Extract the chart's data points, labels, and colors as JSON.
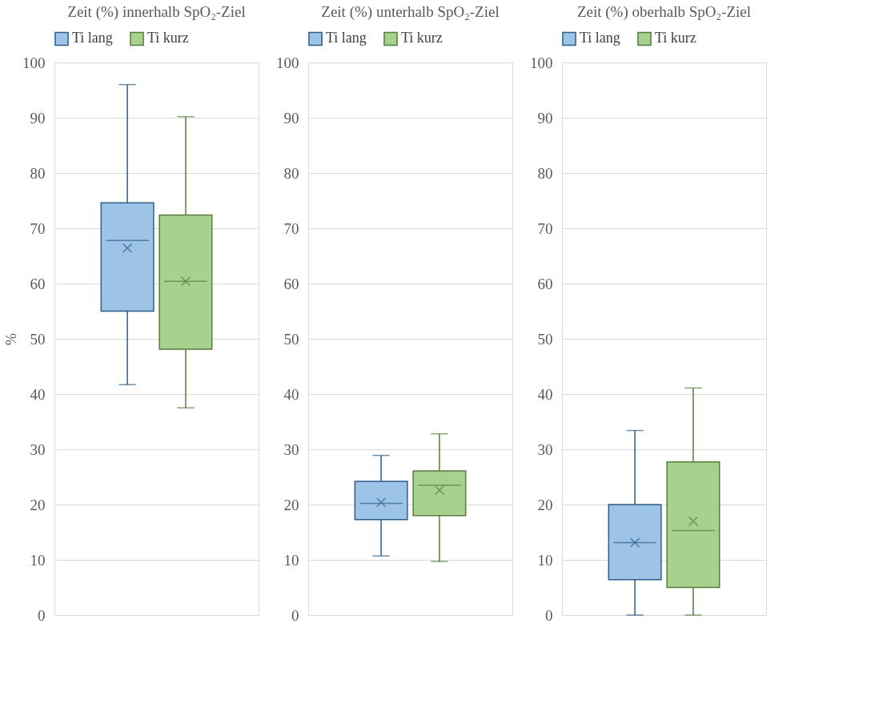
{
  "chart_data": [
    {
      "type": "box",
      "title": "Zeit (%) innerhalb SpO₂-Ziel",
      "ylabel": "%",
      "categories": [
        null
      ],
      "ylim": [
        0,
        100
      ],
      "yticks": [
        0,
        10,
        20,
        30,
        40,
        50,
        60,
        70,
        80,
        90,
        100
      ],
      "grid": "y",
      "legend": "top",
      "series": [
        {
          "name": "Ti lang",
          "color": "#9dc3e6",
          "boxes": [
            {
              "low": 41.7,
              "q1": 55.0,
              "median": 67.8,
              "q3": 74.6,
              "high": 96.0,
              "mean": 66.4
            }
          ]
        },
        {
          "name": "Ti kurz",
          "color": "#a9d18e",
          "boxes": [
            {
              "low": 37.5,
              "q1": 48.1,
              "median": 60.4,
              "q3": 72.4,
              "high": 90.2,
              "mean": 60.4
            }
          ]
        }
      ]
    },
    {
      "type": "box",
      "title": "Zeit (%) unterhalb SpO₂-Ziel",
      "categories": [
        null
      ],
      "ylim": [
        0,
        100
      ],
      "yticks": [
        0,
        10,
        20,
        30,
        40,
        50,
        60,
        70,
        80,
        90,
        100
      ],
      "grid": "y",
      "legend": "top",
      "series": [
        {
          "name": "Ti lang",
          "color": "#9dc3e6",
          "boxes": [
            {
              "low": 10.7,
              "q1": 17.3,
              "median": 20.2,
              "q3": 24.2,
              "high": 28.9,
              "mean": 20.4
            }
          ]
        },
        {
          "name": "Ti kurz",
          "color": "#a9d18e",
          "boxes": [
            {
              "low": 9.7,
              "q1": 18.0,
              "median": 23.5,
              "q3": 26.1,
              "high": 32.8,
              "mean": 22.6
            }
          ]
        }
      ]
    },
    {
      "type": "box",
      "title": "Zeit (%) oberhalb SpO₂-Ziel",
      "categories": [
        null
      ],
      "ylim": [
        0,
        100
      ],
      "yticks": [
        0,
        10,
        20,
        30,
        40,
        50,
        60,
        70,
        80,
        90,
        100
      ],
      "grid": "y",
      "legend": "top",
      "series": [
        {
          "name": "Ti lang",
          "color": "#9dc3e6",
          "boxes": [
            {
              "low": 0,
              "q1": 6.4,
              "median": 13.1,
              "q3": 20.0,
              "high": 33.4,
              "mean": 13.1
            }
          ]
        },
        {
          "name": "Ti kurz",
          "color": "#a9d18e",
          "boxes": [
            {
              "low": 0,
              "q1": 5.0,
              "median": 15.3,
              "q3": 27.7,
              "high": 41.1,
              "mean": 17.0
            }
          ]
        }
      ]
    }
  ]
}
